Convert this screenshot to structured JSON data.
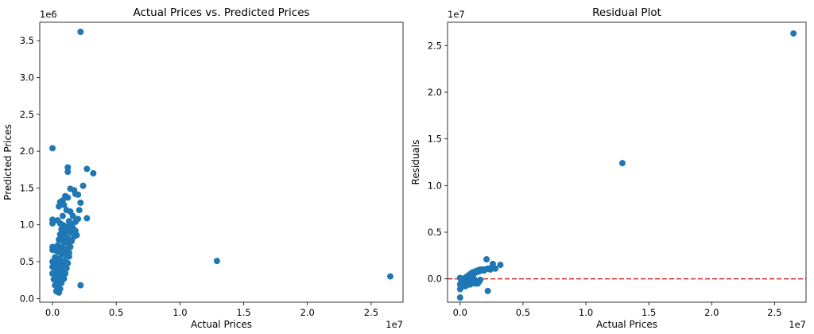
{
  "chart_data": [
    {
      "type": "scatter",
      "title": "Actual Prices vs. Predicted Prices",
      "xlabel": "Actual Prices",
      "ylabel": "Predicted Prices",
      "x_offset_label": "1e7",
      "y_offset_label": "1e6",
      "xlim": [
        -0.1,
        2.75
      ],
      "ylim": [
        -0.05,
        3.75
      ],
      "xticks": [
        0.0,
        0.5,
        1.0,
        1.5,
        2.0,
        2.5
      ],
      "xtick_labels": [
        "0.0",
        "0.5",
        "1.0",
        "1.5",
        "2.0",
        "2.5"
      ],
      "yticks": [
        0.0,
        0.5,
        1.0,
        1.5,
        2.0,
        2.5,
        3.0,
        3.5
      ],
      "ytick_labels": [
        "0.0",
        "0.5",
        "1.0",
        "1.5",
        "2.0",
        "2.5",
        "3.0",
        "3.5"
      ],
      "grid": false,
      "marker_color": "#1f77b4",
      "series": [
        {
          "points": [
            [
              0.22,
              3.62
            ],
            [
              0.0,
              2.04
            ],
            [
              1.29,
              0.51
            ],
            [
              2.65,
              0.3
            ],
            [
              0.22,
              0.18
            ],
            [
              0.12,
              1.78
            ],
            [
              0.12,
              1.72
            ],
            [
              0.27,
              1.76
            ],
            [
              0.32,
              1.7
            ],
            [
              0.24,
              1.53
            ],
            [
              0.14,
              1.49
            ],
            [
              0.17,
              1.47
            ],
            [
              0.18,
              1.42
            ],
            [
              0.2,
              1.41
            ],
            [
              0.1,
              1.39
            ],
            [
              0.12,
              1.37
            ],
            [
              0.08,
              1.33
            ],
            [
              0.06,
              1.31
            ],
            [
              0.22,
              1.3
            ],
            [
              0.05,
              1.25
            ],
            [
              0.09,
              1.27
            ],
            [
              0.11,
              1.2
            ],
            [
              0.14,
              1.18
            ],
            [
              0.08,
              1.12
            ],
            [
              0.27,
              1.09
            ],
            [
              0.2,
              1.08
            ],
            [
              0.0,
              1.07
            ],
            [
              0.0,
              1.02
            ],
            [
              0.04,
              1.06
            ],
            [
              0.06,
              1.02
            ],
            [
              0.08,
              1.0
            ],
            [
              0.1,
              0.98
            ],
            [
              0.13,
              0.97
            ],
            [
              0.16,
              0.96
            ],
            [
              0.18,
              1.04
            ],
            [
              0.07,
              0.94
            ],
            [
              0.09,
              0.92
            ],
            [
              0.11,
              0.91
            ],
            [
              0.14,
              0.9
            ],
            [
              0.16,
              0.88
            ],
            [
              0.06,
              0.87
            ],
            [
              0.08,
              0.85
            ],
            [
              0.1,
              0.84
            ],
            [
              0.12,
              0.82
            ],
            [
              0.17,
              0.84
            ],
            [
              0.05,
              0.8
            ],
            [
              0.07,
              0.79
            ],
            [
              0.09,
              0.77
            ],
            [
              0.11,
              0.76
            ],
            [
              0.13,
              0.74
            ],
            [
              0.04,
              0.72
            ],
            [
              0.06,
              0.7
            ],
            [
              0.08,
              0.69
            ],
            [
              0.1,
              0.67
            ],
            [
              0.12,
              0.66
            ],
            [
              0.0,
              0.7
            ],
            [
              0.0,
              0.66
            ],
            [
              0.03,
              0.65
            ],
            [
              0.05,
              0.63
            ],
            [
              0.07,
              0.61
            ],
            [
              0.09,
              0.6
            ],
            [
              0.11,
              0.58
            ],
            [
              0.13,
              0.57
            ],
            [
              0.02,
              0.56
            ],
            [
              0.04,
              0.54
            ],
            [
              0.06,
              0.53
            ],
            [
              0.08,
              0.51
            ],
            [
              0.1,
              0.5
            ],
            [
              0.12,
              0.48
            ],
            [
              0.0,
              0.5
            ],
            [
              0.03,
              0.47
            ],
            [
              0.05,
              0.45
            ],
            [
              0.07,
              0.44
            ],
            [
              0.09,
              0.42
            ],
            [
              0.11,
              0.41
            ],
            [
              0.0,
              0.43
            ],
            [
              0.02,
              0.4
            ],
            [
              0.04,
              0.38
            ],
            [
              0.06,
              0.37
            ],
            [
              0.08,
              0.35
            ],
            [
              0.1,
              0.34
            ],
            [
              0.0,
              0.34
            ],
            [
              0.03,
              0.32
            ],
            [
              0.05,
              0.3
            ],
            [
              0.07,
              0.29
            ],
            [
              0.09,
              0.27
            ],
            [
              0.01,
              0.26
            ],
            [
              0.03,
              0.24
            ],
            [
              0.05,
              0.22
            ],
            [
              0.07,
              0.21
            ],
            [
              0.02,
              0.18
            ],
            [
              0.04,
              0.15
            ],
            [
              0.06,
              0.13
            ],
            [
              0.03,
              0.1
            ],
            [
              0.05,
              0.08
            ],
            [
              0.15,
              0.78
            ],
            [
              0.14,
              0.7
            ],
            [
              0.13,
              0.62
            ],
            [
              0.15,
              0.95
            ],
            [
              0.19,
              0.86
            ],
            [
              0.16,
              1.12
            ],
            [
              0.21,
              1.2
            ],
            [
              0.13,
              1.05
            ],
            [
              0.15,
              1.0
            ],
            [
              0.18,
              0.92
            ]
          ]
        }
      ]
    },
    {
      "type": "scatter",
      "title": "Residual Plot",
      "xlabel": "Actual Prices",
      "ylabel": "Residuals",
      "x_offset_label": "1e7",
      "y_offset_label": "1e7",
      "xlim": [
        -0.1,
        2.75
      ],
      "ylim": [
        -0.25,
        2.75
      ],
      "xticks": [
        0.0,
        0.5,
        1.0,
        1.5,
        2.0,
        2.5
      ],
      "xtick_labels": [
        "0.0",
        "0.5",
        "1.0",
        "1.5",
        "2.0",
        "2.5"
      ],
      "yticks": [
        0.0,
        0.5,
        1.0,
        1.5,
        2.0,
        2.5
      ],
      "ytick_labels": [
        "0.0",
        "0.5",
        "1.0",
        "1.5",
        "2.0",
        "2.5"
      ],
      "grid": false,
      "marker_color": "#1f77b4",
      "reference_line": {
        "y": 0.0,
        "style": "dashed",
        "color": "#d62728"
      },
      "series": [
        {
          "points": [
            [
              2.65,
              2.63
            ],
            [
              1.29,
              1.24
            ],
            [
              0.21,
              0.21
            ],
            [
              0.26,
              0.16
            ],
            [
              0.32,
              0.15
            ],
            [
              0.22,
              -0.13
            ],
            [
              0.0,
              -0.2
            ],
            [
              0.0,
              -0.11
            ],
            [
              0.0,
              -0.06
            ],
            [
              0.01,
              -0.03
            ],
            [
              0.02,
              -0.02
            ],
            [
              0.03,
              0.0
            ],
            [
              0.04,
              0.01
            ],
            [
              0.05,
              0.02
            ],
            [
              0.06,
              0.03
            ],
            [
              0.07,
              0.04
            ],
            [
              0.08,
              0.05
            ],
            [
              0.09,
              0.06
            ],
            [
              0.1,
              0.07
            ],
            [
              0.11,
              0.06
            ],
            [
              0.12,
              0.08
            ],
            [
              0.13,
              0.07
            ],
            [
              0.14,
              0.09
            ],
            [
              0.15,
              0.08
            ],
            [
              0.16,
              0.1
            ],
            [
              0.17,
              0.09
            ],
            [
              0.18,
              0.1
            ],
            [
              0.19,
              0.09
            ],
            [
              0.2,
              0.1
            ],
            [
              0.22,
              0.11
            ],
            [
              0.24,
              0.1
            ],
            [
              0.25,
              0.12
            ],
            [
              0.28,
              0.11
            ],
            [
              0.01,
              -0.08
            ],
            [
              0.02,
              -0.07
            ],
            [
              0.03,
              -0.05
            ],
            [
              0.04,
              -0.04
            ],
            [
              0.05,
              -0.03
            ],
            [
              0.06,
              -0.02
            ],
            [
              0.07,
              -0.01
            ],
            [
              0.08,
              0.0
            ],
            [
              0.09,
              0.01
            ],
            [
              0.1,
              0.02
            ],
            [
              0.11,
              0.0
            ],
            [
              0.12,
              -0.02
            ],
            [
              0.13,
              -0.04
            ],
            [
              0.14,
              -0.05
            ],
            [
              0.15,
              -0.03
            ],
            [
              0.16,
              -0.01
            ],
            [
              0.02,
              -0.04
            ],
            [
              0.03,
              -0.06
            ],
            [
              0.04,
              -0.08
            ],
            [
              0.05,
              -0.07
            ],
            [
              0.06,
              -0.05
            ],
            [
              0.08,
              -0.06
            ],
            [
              0.1,
              -0.04
            ],
            [
              0.12,
              -0.05
            ],
            [
              0.14,
              -0.03
            ],
            [
              0.01,
              -0.02
            ],
            [
              0.0,
              0.01
            ]
          ]
        }
      ]
    }
  ]
}
